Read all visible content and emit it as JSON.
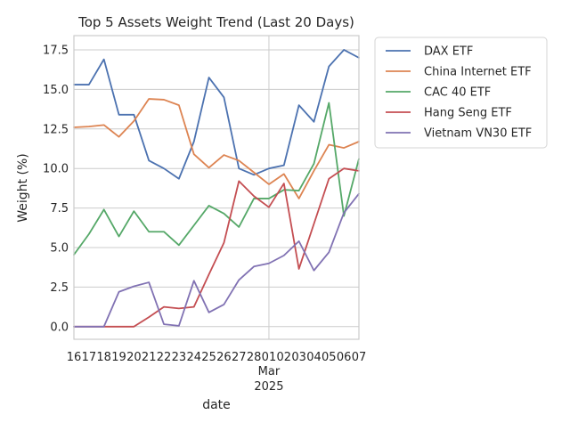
{
  "chart_data": {
    "type": "line",
    "title": "Top 5 Assets Weight Trend (Last 20 Days)",
    "xlabel": "date",
    "ylabel": "Weight (%)",
    "x": [
      "2025-02-16",
      "2025-02-17",
      "2025-02-18",
      "2025-02-19",
      "2025-02-20",
      "2025-02-21",
      "2025-02-22",
      "2025-02-23",
      "2025-02-24",
      "2025-02-25",
      "2025-02-26",
      "2025-02-27",
      "2025-02-28",
      "2025-03-01",
      "2025-03-02",
      "2025-03-03",
      "2025-03-04",
      "2025-03-05",
      "2025-03-06",
      "2025-03-07"
    ],
    "x_tick_labels": [
      "16",
      "17",
      "18",
      "19",
      "20",
      "21",
      "22",
      "23",
      "24",
      "25",
      "26",
      "27",
      "28",
      "01",
      "02",
      "03",
      "04",
      "05",
      "06",
      "07"
    ],
    "x_month_label": "Mar",
    "x_year_label": "2025",
    "ylim": [
      -0.8,
      18.4
    ],
    "y_ticks": [
      0.0,
      2.5,
      5.0,
      7.5,
      10.0,
      12.5,
      15.0,
      17.5
    ],
    "y_tick_labels": [
      "0.0",
      "2.5",
      "5.0",
      "7.5",
      "10.0",
      "12.5",
      "15.0",
      "17.5"
    ],
    "grid": true,
    "legend_position": "outside-top-right",
    "series": [
      {
        "name": "DAX ETF",
        "color": "#4c72b0",
        "values": [
          15.3,
          15.3,
          16.9,
          13.4,
          13.4,
          10.5,
          10.0,
          9.35,
          11.7,
          15.75,
          14.5,
          10.0,
          9.6,
          10.0,
          10.2,
          14.0,
          12.95,
          16.45,
          17.5,
          17.0
        ]
      },
      {
        "name": "China Internet ETF",
        "color": "#dd8452",
        "values": [
          12.6,
          12.65,
          12.75,
          12.0,
          13.0,
          14.4,
          14.35,
          14.0,
          10.9,
          10.05,
          10.85,
          10.5,
          9.75,
          9.0,
          9.65,
          8.1,
          9.85,
          11.5,
          11.3,
          11.7
        ]
      },
      {
        "name": "CAC 40 ETF",
        "color": "#55a868",
        "values": [
          4.55,
          5.85,
          7.4,
          5.7,
          7.3,
          6.0,
          6.0,
          5.15,
          6.4,
          7.65,
          7.15,
          6.3,
          8.1,
          8.1,
          8.65,
          8.6,
          10.3,
          14.15,
          7.0,
          10.6
        ]
      },
      {
        "name": "Hang Seng ETF",
        "color": "#c44e52",
        "values": [
          0.0,
          0.0,
          0.0,
          0.0,
          0.0,
          0.6,
          1.25,
          1.15,
          1.25,
          3.3,
          5.3,
          9.2,
          8.25,
          7.55,
          9.05,
          3.65,
          6.5,
          9.35,
          10.0,
          9.85
        ]
      },
      {
        "name": "Vietnam VN30 ETF",
        "color": "#8172b3",
        "values": [
          0.0,
          0.0,
          0.0,
          2.2,
          2.55,
          2.8,
          0.15,
          0.05,
          2.9,
          0.9,
          1.4,
          2.95,
          3.8,
          4.0,
          4.5,
          5.4,
          3.55,
          4.7,
          7.2,
          8.4
        ]
      }
    ]
  }
}
